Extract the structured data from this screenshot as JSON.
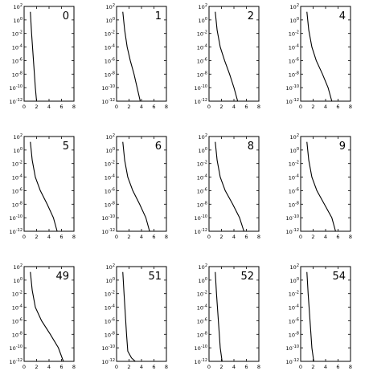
{
  "chart_data": {
    "type": "line",
    "layout": "grid 3x4 small multiples",
    "xlim": [
      0,
      8
    ],
    "x_ticks": [
      "0",
      "2",
      "4",
      "6",
      "8"
    ],
    "ylim_log10": [
      -12,
      2
    ],
    "y_scale": "log",
    "y_ticks": [
      {
        "base": "10",
        "exp": "2"
      },
      {
        "base": "10",
        "exp": "0"
      },
      {
        "base": "10",
        "exp": "-2"
      },
      {
        "base": "10",
        "exp": "-4"
      },
      {
        "base": "10",
        "exp": "-6"
      },
      {
        "base": "10",
        "exp": "-8"
      },
      {
        "base": "10",
        "exp": "-10"
      },
      {
        "base": "10",
        "exp": "-12"
      }
    ],
    "panels": [
      {
        "label": "0",
        "x": [
          1.0,
          1.2,
          1.5,
          1.8,
          2.0
        ],
        "y": [
          1.2,
          -2,
          -6,
          -10,
          -12
        ]
      },
      {
        "label": "1",
        "x": [
          1.0,
          1.3,
          1.7,
          2.2,
          2.8,
          3.3,
          3.8
        ],
        "y": [
          1.2,
          -1.5,
          -4,
          -6,
          -8,
          -10,
          -12
        ]
      },
      {
        "label": "2",
        "x": [
          1.0,
          1.3,
          1.8,
          2.5,
          3.3,
          4.0,
          4.6
        ],
        "y": [
          1.2,
          -1.5,
          -4,
          -6,
          -8,
          -10,
          -12
        ]
      },
      {
        "label": "4",
        "x": [
          1.0,
          1.3,
          1.8,
          2.5,
          3.5,
          4.4,
          5.0
        ],
        "y": [
          1.2,
          -1.5,
          -4,
          -6,
          -8,
          -10,
          -12
        ]
      },
      {
        "label": "5",
        "x": [
          1.0,
          1.3,
          1.8,
          2.6,
          3.7,
          4.7,
          5.3
        ],
        "y": [
          1.2,
          -1.5,
          -4,
          -6,
          -8,
          -10,
          -12
        ]
      },
      {
        "label": "6",
        "x": [
          1.0,
          1.3,
          1.8,
          2.6,
          3.7,
          4.7,
          5.3
        ],
        "y": [
          1.2,
          -1.5,
          -4,
          -6,
          -8,
          -10,
          -12
        ]
      },
      {
        "label": "8",
        "x": [
          1.0,
          1.3,
          1.8,
          2.6,
          3.8,
          4.9,
          5.6
        ],
        "y": [
          1.2,
          -1.5,
          -4,
          -6,
          -8,
          -10,
          -12
        ]
      },
      {
        "label": "9",
        "x": [
          1.0,
          1.3,
          1.8,
          2.6,
          3.8,
          5.0,
          5.6
        ],
        "y": [
          1.2,
          -1.5,
          -4,
          -6,
          -8,
          -10,
          -12
        ]
      },
      {
        "label": "49",
        "x": [
          1.0,
          1.3,
          1.8,
          2.8,
          4.2,
          5.5,
          6.3
        ],
        "y": [
          1.2,
          -1.5,
          -4,
          -6,
          -8,
          -10,
          -12
        ]
      },
      {
        "label": "51",
        "x": [
          1.0,
          1.2,
          1.4,
          1.6,
          1.8,
          2.4,
          3.0
        ],
        "y": [
          1.2,
          -2,
          -5,
          -8,
          -10.5,
          -11.5,
          -12
        ]
      },
      {
        "label": "52",
        "x": [
          1.0,
          1.2,
          1.5,
          1.8,
          2.1
        ],
        "y": [
          1.2,
          -2,
          -6,
          -10,
          -12
        ]
      },
      {
        "label": "54",
        "x": [
          1.0,
          1.2,
          1.5,
          1.8,
          2.1
        ],
        "y": [
          1.2,
          -2,
          -6,
          -10,
          -12
        ]
      }
    ]
  }
}
